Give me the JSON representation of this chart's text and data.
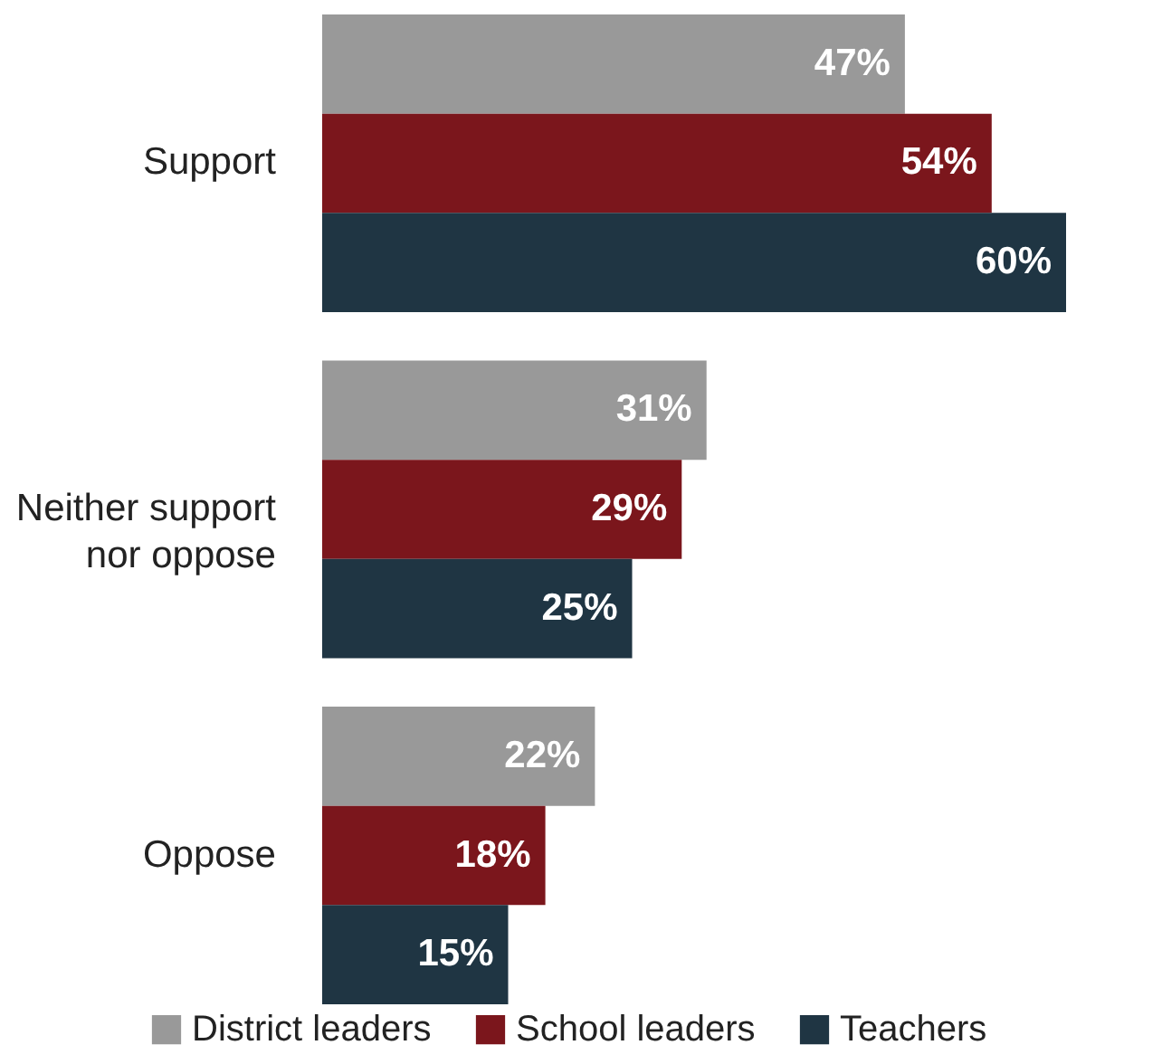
{
  "chart_data": {
    "type": "bar",
    "orientation": "horizontal",
    "categories": [
      "Support",
      "Neither support nor oppose",
      "Oppose"
    ],
    "series": [
      {
        "name": "District leaders",
        "color": "#999999",
        "values": [
          47,
          31,
          22
        ],
        "value_labels": [
          "47%",
          "31%",
          "22%"
        ]
      },
      {
        "name": "School leaders",
        "color": "#7b161c",
        "values": [
          54,
          29,
          18
        ],
        "value_labels": [
          "54%",
          "29%",
          "18%"
        ]
      },
      {
        "name": "Teachers",
        "color": "#1f3543",
        "values": [
          60,
          25,
          15
        ],
        "value_labels": [
          "60%",
          "25%",
          "15%"
        ]
      }
    ],
    "legend": "bottom"
  }
}
